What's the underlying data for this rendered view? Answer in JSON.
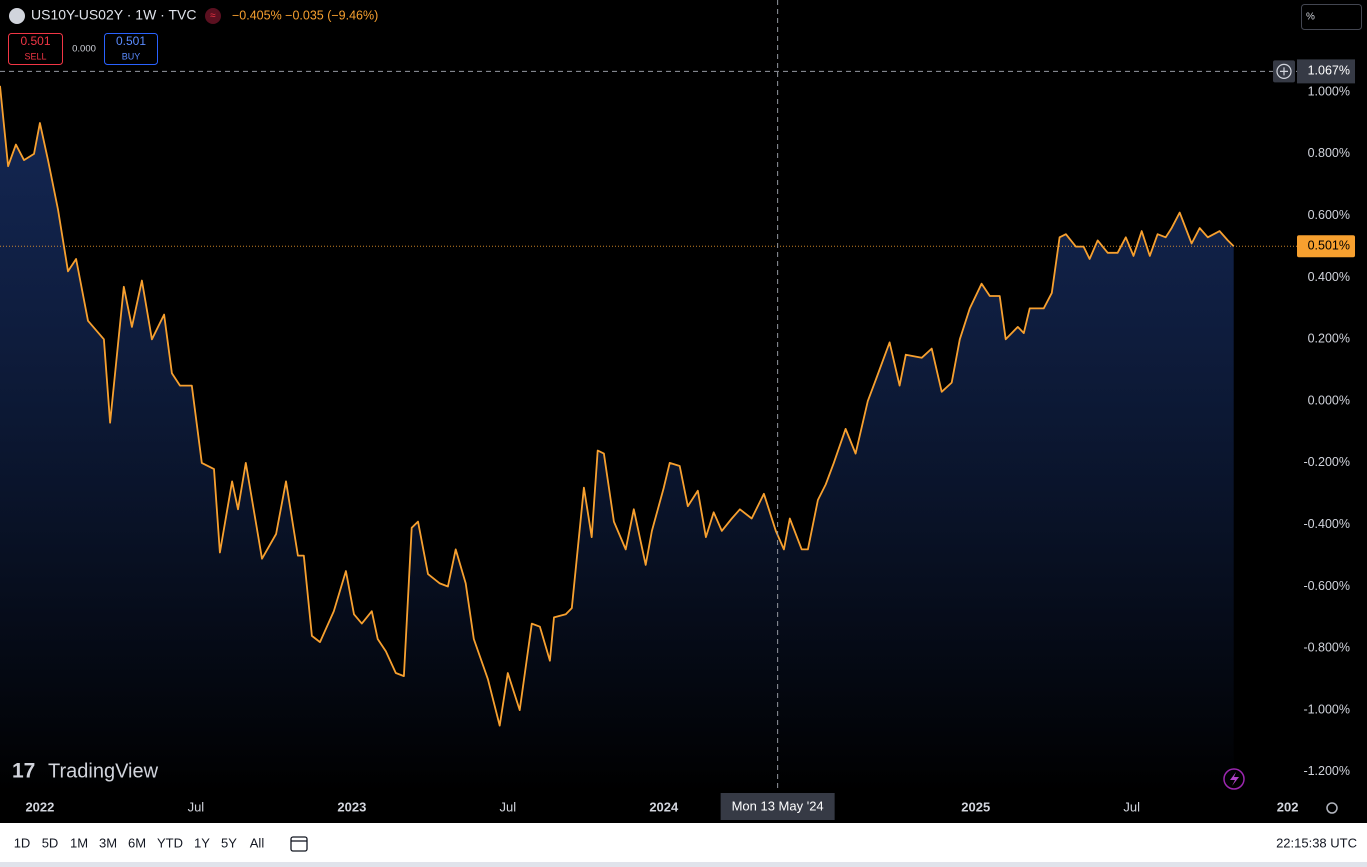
{
  "chart_data": {
    "type": "area-line",
    "title": "US10Y-US02Y · 1W · TVC",
    "change": "−0.405% −0.035 (−9.46%)",
    "color": "#f7a02f",
    "x": [
      2021.872,
      2021.898,
      2021.923,
      2021.949,
      2021.981,
      2022.0,
      2022.026,
      2022.058,
      2022.09,
      2022.116,
      2022.154,
      2022.205,
      2022.225,
      2022.269,
      2022.295,
      2022.327,
      2022.359,
      2022.398,
      2022.423,
      2022.449,
      2022.487,
      2022.519,
      2022.558,
      2022.577,
      2022.616,
      2022.635,
      2022.66,
      2022.712,
      2022.757,
      2022.789,
      2022.827,
      2022.846,
      2022.872,
      2022.898,
      2022.942,
      2022.981,
      2023.007,
      2023.032,
      2023.064,
      2023.083,
      2023.109,
      2023.141,
      2023.167,
      2023.192,
      2023.212,
      2023.244,
      2023.282,
      2023.308,
      2023.333,
      2023.365,
      2023.391,
      2023.436,
      2023.474,
      2023.5,
      2023.538,
      2023.577,
      2023.603,
      2023.635,
      2023.648,
      2023.686,
      2023.705,
      2023.744,
      2023.769,
      2023.788,
      2023.808,
      2023.84,
      2023.878,
      2023.904,
      2023.942,
      2023.962,
      2024.0,
      2024.019,
      2024.051,
      2024.077,
      2024.109,
      2024.135,
      2024.16,
      2024.186,
      2024.218,
      2024.244,
      2024.282,
      2024.321,
      2024.359,
      2024.385,
      2024.404,
      2024.442,
      2024.462,
      2024.494,
      2024.519,
      2024.545,
      2024.583,
      2024.615,
      2024.654,
      2024.68,
      2024.724,
      2024.756,
      2024.776,
      2024.827,
      2024.859,
      2024.891,
      2024.923,
      2024.949,
      2024.981,
      2025.019,
      2025.045,
      2025.077,
      2025.096,
      2025.135,
      2025.154,
      2025.173,
      2025.218,
      2025.244,
      2025.269,
      2025.289,
      2025.321,
      2025.346,
      2025.365,
      2025.391,
      2025.423,
      2025.455,
      2025.481,
      2025.506,
      2025.532,
      2025.558,
      2025.583,
      2025.609,
      2025.628,
      2025.654,
      2025.692,
      2025.718,
      2025.744,
      2025.763,
      2025.782,
      2025.808,
      2025.827
    ],
    "values": [
      1.02,
      0.76,
      0.83,
      0.78,
      0.8,
      0.9,
      0.78,
      0.62,
      0.42,
      0.46,
      0.26,
      0.2,
      -0.07,
      0.37,
      0.24,
      0.39,
      0.2,
      0.28,
      0.09,
      0.05,
      0.05,
      -0.2,
      -0.22,
      -0.49,
      -0.26,
      -0.35,
      -0.2,
      -0.51,
      -0.43,
      -0.26,
      -0.5,
      -0.5,
      -0.76,
      -0.78,
      -0.68,
      -0.55,
      -0.69,
      -0.72,
      -0.68,
      -0.77,
      -0.81,
      -0.88,
      -0.89,
      -0.41,
      -0.39,
      -0.56,
      -0.59,
      -0.6,
      -0.48,
      -0.59,
      -0.77,
      -0.9,
      -1.05,
      -0.88,
      -1.0,
      -0.72,
      -0.73,
      -0.84,
      -0.7,
      -0.69,
      -0.67,
      -0.28,
      -0.44,
      -0.16,
      -0.17,
      -0.39,
      -0.48,
      -0.35,
      -0.53,
      -0.42,
      -0.28,
      -0.2,
      -0.21,
      -0.34,
      -0.29,
      -0.44,
      -0.36,
      -0.42,
      -0.38,
      -0.35,
      -0.38,
      -0.3,
      -0.42,
      -0.48,
      -0.38,
      -0.48,
      -0.48,
      -0.32,
      -0.27,
      -0.2,
      -0.09,
      -0.17,
      0.0,
      0.07,
      0.19,
      0.05,
      0.15,
      0.14,
      0.17,
      0.03,
      0.06,
      0.2,
      0.3,
      0.38,
      0.34,
      0.34,
      0.2,
      0.24,
      0.22,
      0.3,
      0.3,
      0.35,
      0.53,
      0.54,
      0.5,
      0.5,
      0.46,
      0.52,
      0.48,
      0.48,
      0.53,
      0.47,
      0.55,
      0.47,
      0.54,
      0.53,
      0.56,
      0.61,
      0.51,
      0.56,
      0.53,
      0.54,
      0.55,
      0.52,
      0.501
    ],
    "xlim": [
      2021.872,
      2026.03
    ],
    "xticks": [
      2022,
      {
        "value": 2022.5,
        "label": "Jul"
      },
      2023,
      {
        "value": 2023.5,
        "label": "Jul"
      },
      2024,
      2025,
      {
        "value": 2025.5,
        "label": "Jul"
      },
      {
        "value": 2026,
        "label": "202"
      }
    ],
    "ylim": [
      -1.265,
      1.298
    ],
    "yticks": [
      {
        "value": 1.0,
        "label": "1.000%"
      },
      {
        "value": 0.8,
        "label": "0.800%"
      },
      {
        "value": 0.6,
        "label": "0.600%"
      },
      {
        "value": 0.4,
        "label": "0.400%"
      },
      {
        "value": 0.2,
        "label": "0.200%"
      },
      {
        "value": 0,
        "label": "0.000%"
      },
      {
        "value": -0.2,
        "label": "-0.200%"
      },
      {
        "value": -0.4,
        "label": "-0.400%"
      },
      {
        "value": -0.6,
        "label": "-0.600%"
      },
      {
        "value": -0.8,
        "label": "-0.800%"
      },
      {
        "value": -1.0,
        "label": "-1.000%"
      },
      {
        "value": -1.2,
        "label": "-1.200%"
      }
    ],
    "grid": false,
    "last_price": {
      "value": 0.501,
      "label": "0.501%"
    },
    "crosshair": {
      "x": {
        "value": 2024.365,
        "label": "Mon 13 May '24"
      },
      "y": {
        "value": 1.067,
        "label": "1.067%"
      }
    },
    "scale_mode": "%"
  },
  "trade": {
    "sell_price": "0.501",
    "sell": "SELL",
    "spread": "0.000",
    "buy_price": "0.501",
    "buy": "BUY"
  },
  "branding": "TradingView",
  "toolbar": {
    "ranges": [
      "1D",
      "5D",
      "1M",
      "3M",
      "6M",
      "YTD",
      "1Y",
      "5Y",
      "All"
    ],
    "clock": "22:15:38 UTC"
  }
}
